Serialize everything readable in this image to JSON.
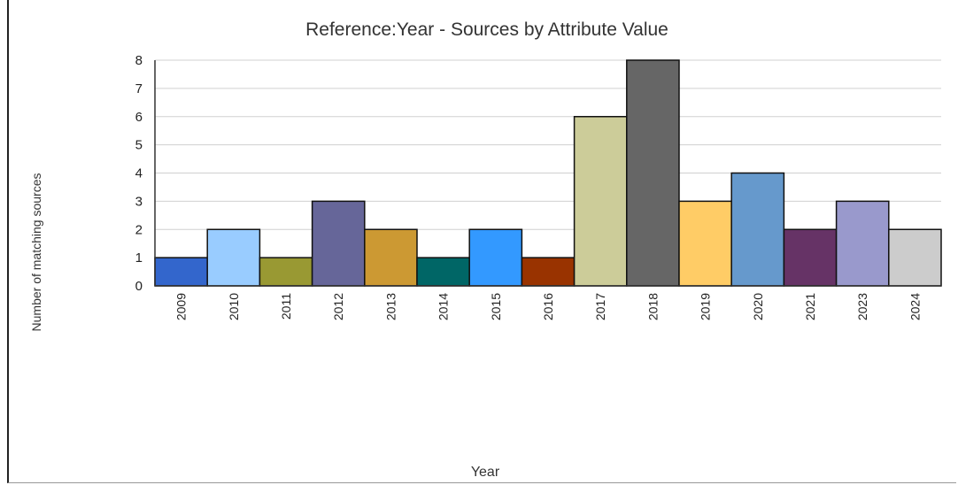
{
  "chart_data": {
    "type": "bar",
    "title": "Reference:Year - Sources by Attribute Value",
    "xlabel": "Year",
    "ylabel": "Number of matching sources",
    "ylim": [
      0,
      8
    ],
    "yticks": [
      0,
      1,
      2,
      3,
      4,
      5,
      6,
      7,
      8
    ],
    "grid": true,
    "categories": [
      "2009",
      "2010",
      "2011",
      "2012",
      "2013",
      "2014",
      "2015",
      "2016",
      "2017",
      "2018",
      "2019",
      "2020",
      "2021",
      "2023",
      "2024"
    ],
    "values": [
      1,
      2,
      1,
      3,
      2,
      1,
      2,
      1,
      6,
      8,
      3,
      4,
      2,
      3,
      2
    ],
    "colors": [
      "#3366cc",
      "#99ccff",
      "#999933",
      "#666699",
      "#cc9933",
      "#006666",
      "#3399ff",
      "#993300",
      "#cccc99",
      "#666666",
      "#ffcc66",
      "#6699cc",
      "#663366",
      "#9999cc",
      "#cccccc"
    ]
  }
}
